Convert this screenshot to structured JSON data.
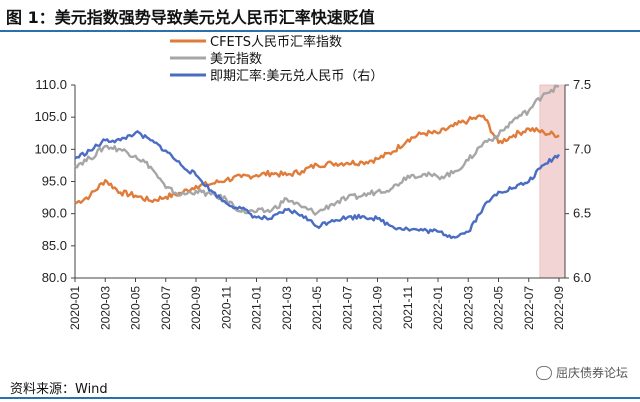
{
  "title": "图 1：美元指数强势导致美元兑人民币汇率快速贬值",
  "source": "资料来源：Wind",
  "watermark": "屈庆债券论坛",
  "chart_data": {
    "type": "line",
    "x_ticks": [
      "2020-01",
      "2020-03",
      "2020-05",
      "2020-07",
      "2020-09",
      "2020-11",
      "2021-01",
      "2021-03",
      "2021-05",
      "2021-07",
      "2021-09",
      "2021-11",
      "2022-01",
      "2022-03",
      "2022-05",
      "2022-07",
      "2022-09"
    ],
    "x_range": [
      "2020-01",
      "2022-09"
    ],
    "y_left": {
      "ticks": [
        "80.0",
        "85.0",
        "90.0",
        "95.0",
        "100.0",
        "105.0",
        "110.0"
      ],
      "lim": [
        80,
        110
      ]
    },
    "y_right": {
      "ticks": [
        "6.0",
        "6.5",
        "7.0",
        "7.5"
      ],
      "lim": [
        6.0,
        7.5
      ]
    },
    "highlight": {
      "from": "2022-08",
      "to": "2022-09",
      "color": "#f3d4d4"
    },
    "legend": {
      "placement": "top-center"
    },
    "series": [
      {
        "name": "CFETS人民币汇率指数",
        "color": "#e07b39",
        "axis": "left",
        "points": [
          [
            "2020-01",
            91.6
          ],
          [
            "2020-02",
            92.8
          ],
          [
            "2020-03",
            95.2
          ],
          [
            "2020-04",
            93.3
          ],
          [
            "2020-05",
            92.8
          ],
          [
            "2020-06",
            92.0
          ],
          [
            "2020-07",
            92.6
          ],
          [
            "2020-08",
            93.2
          ],
          [
            "2020-09",
            94.3
          ],
          [
            "2020-10",
            94.6
          ],
          [
            "2020-11",
            95.3
          ],
          [
            "2020-12",
            95.7
          ],
          [
            "2021-01",
            96.0
          ],
          [
            "2021-02",
            96.3
          ],
          [
            "2021-03",
            96.0
          ],
          [
            "2021-04",
            96.6
          ],
          [
            "2021-05",
            97.6
          ],
          [
            "2021-06",
            97.8
          ],
          [
            "2021-07",
            97.9
          ],
          [
            "2021-08",
            98.0
          ],
          [
            "2021-09",
            98.5
          ],
          [
            "2021-10",
            99.6
          ],
          [
            "2021-11",
            101.5
          ],
          [
            "2021-12",
            102.5
          ],
          [
            "2022-01",
            102.5
          ],
          [
            "2022-02",
            103.6
          ],
          [
            "2022-03",
            104.5
          ],
          [
            "2022-04",
            105.2
          ],
          [
            "2022-05",
            101.0
          ],
          [
            "2022-06",
            102.2
          ],
          [
            "2022-07",
            103.2
          ],
          [
            "2022-08",
            102.6
          ],
          [
            "2022-09",
            102.2
          ]
        ]
      },
      {
        "name": "美元指数",
        "color": "#a6a6a6",
        "axis": "left",
        "points": [
          [
            "2020-01",
            97.5
          ],
          [
            "2020-02",
            98.6
          ],
          [
            "2020-03",
            100.5
          ],
          [
            "2020-04",
            100.0
          ],
          [
            "2020-05",
            99.0
          ],
          [
            "2020-06",
            97.3
          ],
          [
            "2020-07",
            94.0
          ],
          [
            "2020-08",
            92.9
          ],
          [
            "2020-09",
            93.5
          ],
          [
            "2020-10",
            93.0
          ],
          [
            "2020-11",
            92.2
          ],
          [
            "2020-12",
            90.3
          ],
          [
            "2021-01",
            90.3
          ],
          [
            "2021-02",
            90.5
          ],
          [
            "2021-03",
            92.3
          ],
          [
            "2021-04",
            91.0
          ],
          [
            "2021-05",
            90.1
          ],
          [
            "2021-06",
            91.5
          ],
          [
            "2021-07",
            92.4
          ],
          [
            "2021-08",
            92.8
          ],
          [
            "2021-09",
            93.5
          ],
          [
            "2021-10",
            94.0
          ],
          [
            "2021-11",
            95.9
          ],
          [
            "2021-12",
            96.1
          ],
          [
            "2022-01",
            95.7
          ],
          [
            "2022-02",
            96.3
          ],
          [
            "2022-03",
            98.3
          ],
          [
            "2022-04",
            101.0
          ],
          [
            "2022-05",
            102.2
          ],
          [
            "2022-06",
            104.6
          ],
          [
            "2022-07",
            106.0
          ],
          [
            "2022-08",
            108.7
          ],
          [
            "2022-09",
            109.8
          ]
        ]
      },
      {
        "name": "即期汇率:美元兑人民币（右）",
        "color": "#4a6cc2",
        "axis": "right",
        "points": [
          [
            "2020-01",
            6.93
          ],
          [
            "2020-02",
            6.99
          ],
          [
            "2020-03",
            7.07
          ],
          [
            "2020-04",
            7.07
          ],
          [
            "2020-05",
            7.13
          ],
          [
            "2020-06",
            7.07
          ],
          [
            "2020-07",
            6.99
          ],
          [
            "2020-08",
            6.88
          ],
          [
            "2020-09",
            6.8
          ],
          [
            "2020-10",
            6.68
          ],
          [
            "2020-11",
            6.58
          ],
          [
            "2020-12",
            6.54
          ],
          [
            "2021-01",
            6.47
          ],
          [
            "2021-02",
            6.46
          ],
          [
            "2021-03",
            6.53
          ],
          [
            "2021-04",
            6.49
          ],
          [
            "2021-05",
            6.4
          ],
          [
            "2021-06",
            6.45
          ],
          [
            "2021-07",
            6.47
          ],
          [
            "2021-08",
            6.48
          ],
          [
            "2021-09",
            6.46
          ],
          [
            "2021-10",
            6.4
          ],
          [
            "2021-11",
            6.38
          ],
          [
            "2021-12",
            6.37
          ],
          [
            "2022-01",
            6.36
          ],
          [
            "2022-02",
            6.32
          ],
          [
            "2022-03",
            6.36
          ],
          [
            "2022-04",
            6.55
          ],
          [
            "2022-05",
            6.67
          ],
          [
            "2022-06",
            6.7
          ],
          [
            "2022-07",
            6.75
          ],
          [
            "2022-08",
            6.88
          ],
          [
            "2022-09",
            6.96
          ]
        ]
      }
    ]
  }
}
